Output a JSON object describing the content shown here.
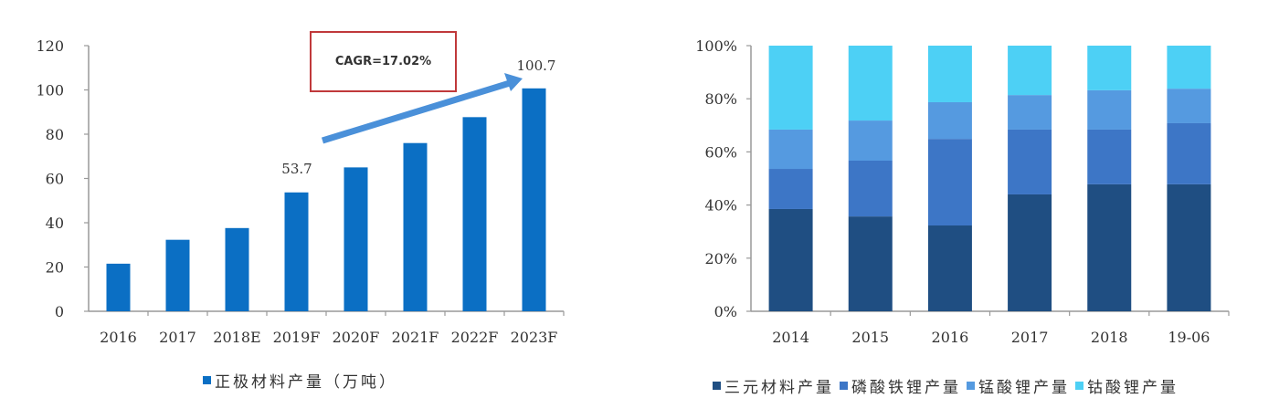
{
  "chart_data": [
    {
      "type": "bar",
      "title": "",
      "xlabel": "",
      "ylabel": "",
      "categories": [
        "2016",
        "2017",
        "2018E",
        "2019F",
        "2020F",
        "2021F",
        "2022F",
        "2023F"
      ],
      "values": [
        21.5,
        32.3,
        37.6,
        53.7,
        65.0,
        76.0,
        87.7,
        100.7
      ],
      "ylim": [
        0,
        120
      ],
      "yticks": [
        "0",
        "20",
        "40",
        "60",
        "80",
        "100",
        "120"
      ],
      "data_labels": [
        {
          "category": "2019F",
          "text": "53.7"
        },
        {
          "category": "2023F",
          "text": "100.7"
        }
      ],
      "annotations": [
        {
          "type": "text-box",
          "text": "CAGR=17.02%"
        },
        {
          "type": "arrow",
          "from": "2019F",
          "to": "2023F"
        }
      ],
      "legend": [
        "正极材料产量（万吨）"
      ],
      "legend_position": "bottom",
      "grid": false,
      "colors": {
        "bar": "#0b6fc4",
        "arrow": "#4a90d9",
        "box_border": "#c0393b"
      }
    },
    {
      "type": "bar",
      "stacked": "percent",
      "title": "",
      "xlabel": "",
      "ylabel": "",
      "categories": [
        "2014",
        "2015",
        "2016",
        "2017",
        "2018",
        "19-06"
      ],
      "series": [
        {
          "name": "三元材料产量",
          "color": "#1f4e82",
          "values": [
            38.5,
            35.7,
            32.3,
            44.0,
            47.8,
            47.8
          ]
        },
        {
          "name": "磷酸铁锂产量",
          "color": "#3d76c6",
          "values": [
            15.1,
            21.0,
            32.6,
            24.4,
            20.6,
            23.0
          ]
        },
        {
          "name": "锰酸锂产量",
          "color": "#559ae0",
          "values": [
            14.8,
            15.1,
            13.8,
            13.0,
            14.8,
            13.0
          ]
        },
        {
          "name": "钴酸锂产量",
          "color": "#4dd0f5",
          "values": [
            31.6,
            28.2,
            21.3,
            18.6,
            16.8,
            16.2
          ]
        }
      ],
      "ylim": [
        0,
        100
      ],
      "yticks": [
        "0%",
        "20%",
        "40%",
        "60%",
        "80%",
        "100%"
      ],
      "legend_position": "bottom",
      "grid": false
    }
  ],
  "left": {
    "yticks": [
      "0",
      "20",
      "40",
      "60",
      "80",
      "100",
      "120"
    ],
    "categories": [
      "2016",
      "2017",
      "2018E",
      "2019F",
      "2020F",
      "2021F",
      "2022F",
      "2023F"
    ],
    "label_2019": "53.7",
    "label_2023": "100.7",
    "cagr": "CAGR=17.02%",
    "legend": "正极材料产量（万吨）"
  },
  "right": {
    "yticks": [
      "0%",
      "20%",
      "40%",
      "60%",
      "80%",
      "100%"
    ],
    "categories": [
      "2014",
      "2015",
      "2016",
      "2017",
      "2018",
      "19-06"
    ],
    "legend": [
      "三元材料产量",
      "磷酸铁锂产量",
      "锰酸锂产量",
      "钴酸锂产量"
    ]
  }
}
